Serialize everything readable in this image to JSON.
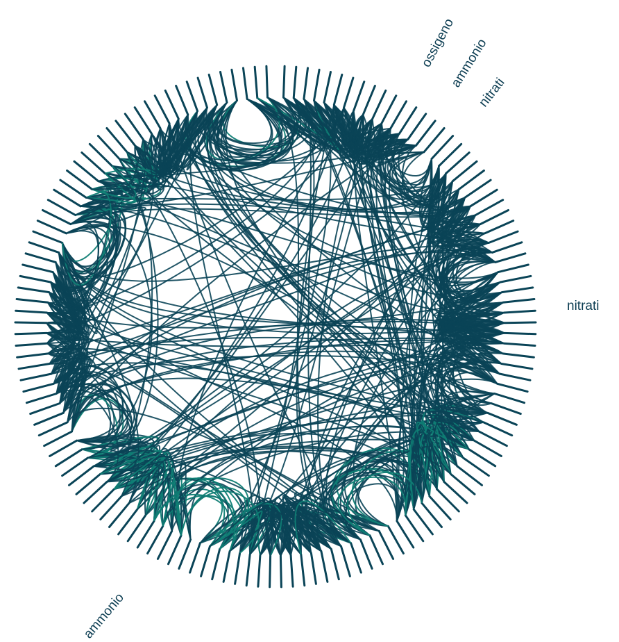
{
  "labels": {
    "ossigeno": "ossigeno",
    "ammonio_top": "ammonio",
    "nitrati_top": "nitrati",
    "nitrati_right": "nitrati",
    "ammonio_bottom": "ammonio"
  },
  "colors": {
    "main": "#0a4457",
    "accent": "#0f7d74",
    "label": "#0c3d52"
  },
  "diagram": {
    "type": "hierarchical-edge-bundling",
    "spoke_count": 140,
    "edge_count": 900
  }
}
